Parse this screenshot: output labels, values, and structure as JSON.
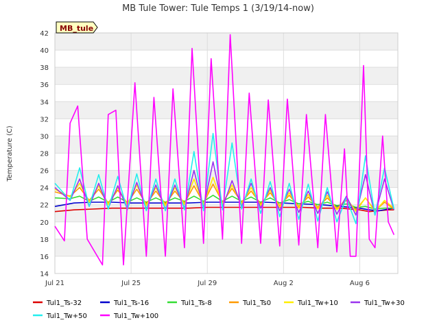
{
  "chart_data": {
    "type": "line",
    "title": "MB Tule Tower: Tule Temps 1 (3/19/14-now)",
    "xlabel": "",
    "ylabel": "Temperature (C)",
    "annotation": "MB_tule",
    "ylim": [
      14,
      42
    ],
    "xlim": [
      0,
      18
    ],
    "yticks": [
      14,
      16,
      18,
      20,
      22,
      24,
      26,
      28,
      30,
      32,
      34,
      36,
      38,
      40,
      42
    ],
    "xticks": [
      {
        "x": 0,
        "label": "Jul 21"
      },
      {
        "x": 4,
        "label": "Jul 25"
      },
      {
        "x": 8,
        "label": "Jul 29"
      },
      {
        "x": 12,
        "label": "Aug 2"
      },
      {
        "x": 16,
        "label": "Aug 6"
      }
    ],
    "grid": true,
    "legend_position": "bottom",
    "series": [
      {
        "name": "Tul1_Ts-32",
        "color": "#dd0000",
        "x": [
          0,
          1,
          2,
          3,
          4,
          5,
          6,
          7,
          8,
          9,
          10,
          11,
          12,
          13,
          14,
          15,
          16,
          16.5,
          17,
          17.5,
          17.8
        ],
        "y": [
          21.2,
          21.4,
          21.5,
          21.6,
          21.6,
          21.6,
          21.6,
          21.6,
          21.7,
          21.7,
          21.7,
          21.7,
          21.7,
          21.7,
          21.6,
          21.6,
          21.4,
          21.2,
          21.3,
          21.4,
          21.4
        ]
      },
      {
        "name": "Tul1_Ts-16",
        "color": "#0000cc",
        "x": [
          0,
          0.5,
          1,
          2,
          3,
          4,
          5,
          6,
          7,
          8,
          9,
          10,
          11,
          12,
          13,
          14,
          15,
          16,
          16.5,
          17,
          17.5,
          17.8
        ],
        "y": [
          21.8,
          22.0,
          22.2,
          22.3,
          22.3,
          22.2,
          22.2,
          22.2,
          22.2,
          22.3,
          22.3,
          22.3,
          22.3,
          22.2,
          22.1,
          22.0,
          21.8,
          21.6,
          21.4,
          21.3,
          21.5,
          21.6
        ]
      },
      {
        "name": "Tul1_Ts-8",
        "color": "#33dd33",
        "x": [
          0,
          0.8,
          1.3,
          1.8,
          2.3,
          2.8,
          3.3,
          3.8,
          4.3,
          4.8,
          5.3,
          5.8,
          6.3,
          6.8,
          7.3,
          7.8,
          8.3,
          8.8,
          9.3,
          9.8,
          10.3,
          10.8,
          11.3,
          11.8,
          12.3,
          12.8,
          13.3,
          13.8,
          14.3,
          14.8,
          15.3,
          15.8,
          16.3,
          16.8,
          17.3,
          17.8
        ],
        "y": [
          22.8,
          22.7,
          23.0,
          22.4,
          22.9,
          22.3,
          22.9,
          22.3,
          22.8,
          22.3,
          22.8,
          22.3,
          22.8,
          22.4,
          23.0,
          22.4,
          23.1,
          22.4,
          23.0,
          22.4,
          22.9,
          22.3,
          22.8,
          22.2,
          22.6,
          22.1,
          22.4,
          22.0,
          22.3,
          21.9,
          22.1,
          21.7,
          21.8,
          21.5,
          21.6,
          21.6
        ]
      },
      {
        "name": "Tul1_Ts0",
        "color": "#ff9900",
        "x": [
          0,
          0.8,
          1.3,
          1.8,
          2.3,
          2.8,
          3.3,
          3.8,
          4.3,
          4.8,
          5.3,
          5.8,
          6.3,
          6.8,
          7.3,
          7.8,
          8.3,
          8.8,
          9.3,
          9.8,
          10.3,
          10.8,
          11.3,
          11.8,
          12.3,
          12.8,
          13.3,
          13.8,
          14.3,
          14.8,
          15.3,
          15.8,
          16.3,
          16.8,
          17.3,
          17.8
        ],
        "y": [
          23.5,
          23.0,
          24.0,
          22.5,
          23.8,
          22.2,
          23.7,
          22.2,
          23.8,
          22.1,
          23.6,
          22.1,
          23.6,
          22.2,
          24.2,
          22.2,
          24.4,
          22.3,
          23.9,
          22.3,
          23.6,
          22.1,
          23.4,
          21.9,
          23.1,
          21.8,
          22.9,
          21.7,
          22.8,
          21.6,
          22.5,
          21.4,
          22.8,
          21.3,
          22.3,
          21.5
        ]
      },
      {
        "name": "Tul1_Tw+10",
        "color": "#ffee00",
        "x": [
          0,
          0.8,
          1.3,
          1.8,
          2.3,
          2.8,
          3.3,
          3.8,
          4.3,
          4.8,
          5.3,
          5.8,
          6.3,
          6.8,
          7.3,
          7.8,
          8.3,
          8.8,
          9.3,
          9.8,
          10.3,
          10.8,
          11.3,
          11.8,
          12.3,
          12.8,
          13.3,
          13.8,
          14.3,
          14.8,
          15.3,
          15.8,
          16.3,
          16.8,
          17.3,
          17.8
        ],
        "y": [
          23.8,
          22.9,
          24.5,
          22.3,
          24.2,
          22.0,
          24.0,
          22.0,
          24.3,
          21.9,
          24.0,
          21.9,
          24.0,
          22.0,
          25.0,
          22.0,
          25.2,
          22.1,
          24.3,
          22.1,
          24.0,
          21.9,
          23.7,
          21.7,
          23.4,
          21.6,
          23.2,
          21.5,
          23.1,
          21.4,
          22.8,
          21.2,
          22.8,
          21.2,
          22.5,
          21.6
        ]
      },
      {
        "name": "Tul1_Tw+30",
        "color": "#9933ee",
        "x": [
          0,
          0.8,
          1.3,
          1.8,
          2.3,
          2.8,
          3.3,
          3.8,
          4.3,
          4.8,
          5.3,
          5.8,
          6.3,
          6.8,
          7.3,
          7.8,
          8.3,
          8.8,
          9.3,
          9.8,
          10.3,
          10.8,
          11.3,
          11.8,
          12.3,
          12.8,
          13.3,
          13.8,
          14.3,
          14.8,
          15.3,
          15.8,
          16.3,
          16.8,
          17.3,
          17.8
        ],
        "y": [
          24.0,
          22.5,
          25.0,
          21.8,
          24.5,
          21.6,
          24.2,
          21.5,
          24.6,
          21.5,
          24.3,
          21.5,
          24.3,
          21.6,
          26.0,
          21.6,
          27.0,
          21.7,
          24.8,
          21.8,
          24.5,
          21.6,
          24.0,
          21.3,
          23.8,
          21.1,
          23.6,
          21.0,
          23.5,
          20.9,
          23.0,
          20.8,
          25.5,
          20.8,
          25.0,
          21.4
        ]
      },
      {
        "name": "Tul1_Tw+50",
        "color": "#22eeee",
        "x": [
          0,
          0.8,
          1.3,
          1.8,
          2.3,
          2.8,
          3.3,
          3.8,
          4.3,
          4.8,
          5.3,
          5.8,
          6.3,
          6.8,
          7.3,
          7.8,
          8.3,
          8.8,
          9.3,
          9.8,
          10.3,
          10.8,
          11.3,
          11.8,
          12.3,
          12.8,
          13.3,
          13.8,
          14.3,
          14.8,
          15.3,
          15.8,
          16.3,
          16.8,
          17.3,
          17.8
        ],
        "y": [
          24.5,
          22.5,
          26.3,
          21.8,
          25.5,
          21.5,
          25.3,
          21.4,
          25.6,
          21.3,
          25.0,
          21.3,
          25.0,
          21.4,
          28.2,
          21.3,
          30.3,
          21.4,
          29.2,
          21.5,
          25.0,
          21.0,
          24.7,
          20.6,
          24.5,
          20.3,
          24.4,
          20.1,
          24.0,
          20.0,
          22.8,
          19.8,
          27.7,
          20.8,
          26.3,
          21.5
        ]
      },
      {
        "name": "Tul1_Tw+100",
        "color": "#ff00ff",
        "x": [
          0,
          0.5,
          0.8,
          1.2,
          1.7,
          2.5,
          2.8,
          3.2,
          3.6,
          4.2,
          4.8,
          5.2,
          5.8,
          6.2,
          6.8,
          7.2,
          7.8,
          8.2,
          8.8,
          9.2,
          9.8,
          10.2,
          10.8,
          11.2,
          11.8,
          12.2,
          12.8,
          13.2,
          13.8,
          14.2,
          14.8,
          15.2,
          15.5,
          15.8,
          16.2,
          16.5,
          16.8,
          17.2,
          17.5,
          17.8
        ],
        "y": [
          19.5,
          17.8,
          31.5,
          33.5,
          18.0,
          15.0,
          32.5,
          33.0,
          15.0,
          36.2,
          16.0,
          34.5,
          16.0,
          35.5,
          17.0,
          40.2,
          17.5,
          39.0,
          18.0,
          41.8,
          17.5,
          35.0,
          17.5,
          34.2,
          17.2,
          34.3,
          17.3,
          32.5,
          17.0,
          32.5,
          16.5,
          28.5,
          16.0,
          16.0,
          38.2,
          18.0,
          17.0,
          30.0,
          20.0,
          18.5
        ]
      }
    ]
  }
}
